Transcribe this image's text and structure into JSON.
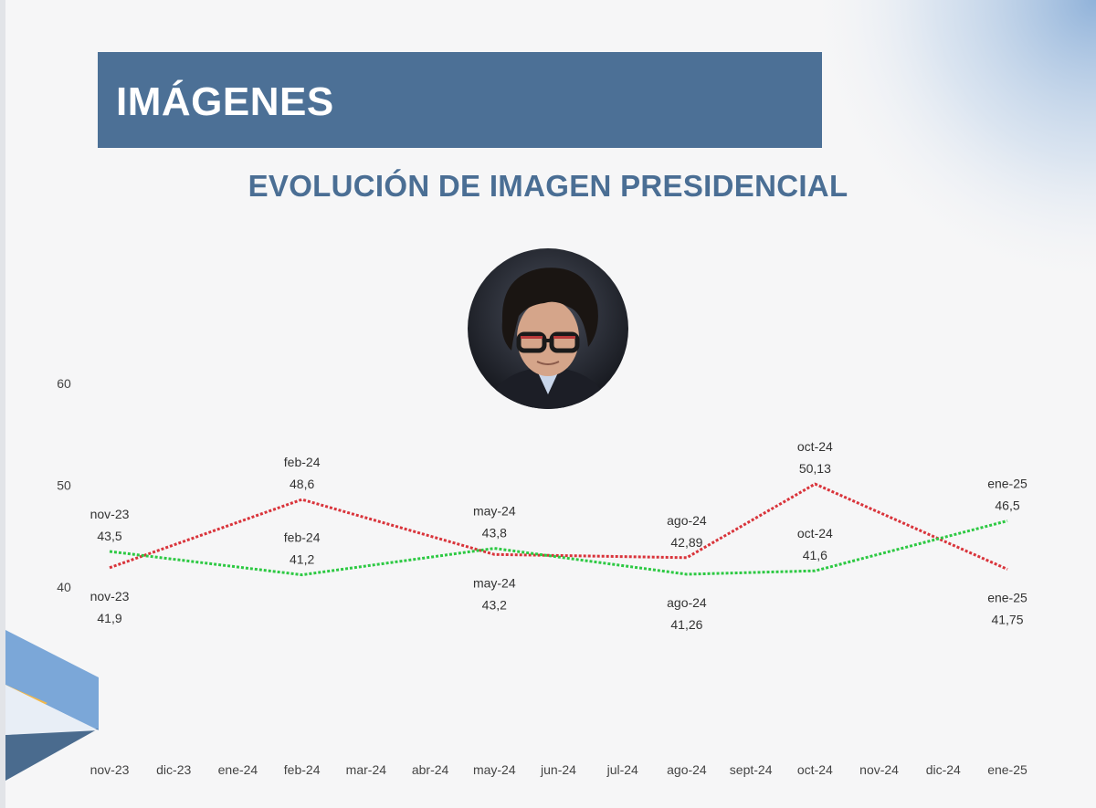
{
  "header": {
    "title": "IMÁGENES"
  },
  "subtitle": "EVOLUCIÓN DE IMAGEN PRESIDENCIAL",
  "colors": {
    "banner": "#4c7096",
    "title_text": "#4a6e94",
    "series_red": "#d9343b",
    "series_green": "#2dc943",
    "label_text": "#333333"
  },
  "chart_data": {
    "type": "line",
    "categories": [
      "nov-23",
      "dic-23",
      "ene-24",
      "feb-24",
      "mar-24",
      "abr-24",
      "may-24",
      "jun-24",
      "jul-24",
      "ago-24",
      "sept-24",
      "oct-24",
      "nov-24",
      "dic-24",
      "ene-25"
    ],
    "ylim": [
      40,
      60
    ],
    "yticks": [
      "40",
      "50",
      "60"
    ],
    "series": [
      {
        "color": "#d9343b",
        "points": [
          {
            "x": "nov-23",
            "y": 41.9,
            "label_date": "nov-23",
            "label_value": "41,9",
            "label_pos": "below"
          },
          {
            "x": "feb-24",
            "y": 48.6,
            "label_date": "feb-24",
            "label_value": "48,6",
            "label_pos": "above"
          },
          {
            "x": "may-24",
            "y": 43.2,
            "label_date": "may-24",
            "label_value": "43,2",
            "label_pos": "below"
          },
          {
            "x": "ago-24",
            "y": 42.89,
            "label_date": "ago-24",
            "label_value": "42,89",
            "label_pos": "above"
          },
          {
            "x": "oct-24",
            "y": 50.13,
            "label_date": "oct-24",
            "label_value": "50,13",
            "label_pos": "above"
          },
          {
            "x": "ene-25",
            "y": 41.75,
            "label_date": "ene-25",
            "label_value": "41,75",
            "label_pos": "below"
          }
        ]
      },
      {
        "color": "#2dc943",
        "points": [
          {
            "x": "nov-23",
            "y": 43.5,
            "label_date": "nov-23",
            "label_value": "43,5",
            "label_pos": "above"
          },
          {
            "x": "feb-24",
            "y": 41.2,
            "label_date": "feb-24",
            "label_value": "41,2",
            "label_pos": "above"
          },
          {
            "x": "may-24",
            "y": 43.8,
            "label_date": "may-24",
            "label_value": "43,8",
            "label_pos": "above"
          },
          {
            "x": "ago-24",
            "y": 41.26,
            "label_date": "ago-24",
            "label_value": "41,26",
            "label_pos": "below"
          },
          {
            "x": "oct-24",
            "y": 41.6,
            "label_date": "oct-24",
            "label_value": "41,6",
            "label_pos": "above"
          },
          {
            "x": "ene-25",
            "y": 46.5,
            "label_date": "ene-25",
            "label_value": "46,5",
            "label_pos": "above"
          }
        ]
      }
    ]
  }
}
